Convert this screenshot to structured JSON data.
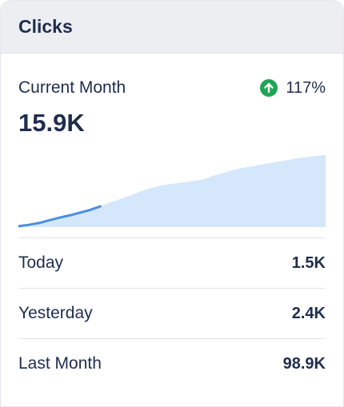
{
  "card": {
    "title": "Clicks"
  },
  "current": {
    "label": "Current Month",
    "value": "15.9K",
    "change": "117%",
    "change_icon": "arrow-up-circle-icon",
    "change_color": "#1fa456"
  },
  "chart_data": {
    "type": "area",
    "x": [
      0,
      1,
      2,
      3,
      4,
      5,
      6,
      7,
      8,
      9,
      10,
      11,
      12,
      13,
      14,
      15,
      16,
      17,
      18,
      19,
      20,
      21,
      22,
      23,
      24,
      25,
      26,
      27,
      28,
      29,
      30
    ],
    "values": [
      0.2,
      0.5,
      0.9,
      1.5,
      2.1,
      2.6,
      3.2,
      3.8,
      4.6,
      5.5,
      6.3,
      7.1,
      8.0,
      8.7,
      9.3,
      9.6,
      9.9,
      10.2,
      10.6,
      11.4,
      12.0,
      12.7,
      13.2,
      13.6,
      14.0,
      14.4,
      14.8,
      15.2,
      15.5,
      15.8,
      16.0
    ],
    "highlighted_range": [
      0,
      8
    ],
    "fill_color": "#d5e7fb",
    "line_color": "#4a8fe0"
  },
  "stats": [
    {
      "label": "Today",
      "value": "1.5K"
    },
    {
      "label": "Yesterday",
      "value": "2.4K"
    },
    {
      "label": "Last Month",
      "value": "98.9K"
    }
  ]
}
